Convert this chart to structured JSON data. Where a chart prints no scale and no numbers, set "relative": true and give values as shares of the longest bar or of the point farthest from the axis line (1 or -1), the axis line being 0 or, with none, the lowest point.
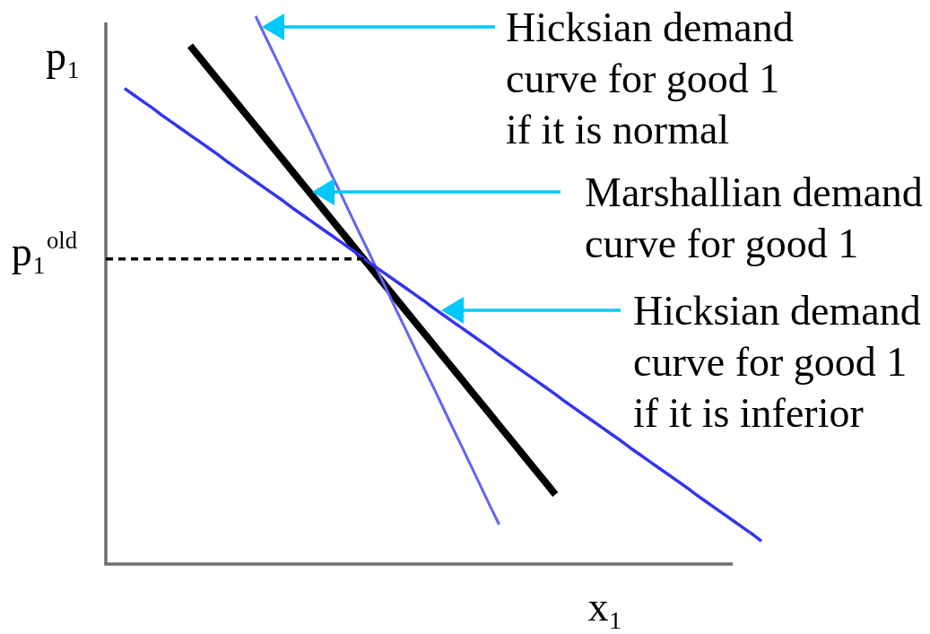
{
  "chart_data": {
    "type": "line",
    "relative": true,
    "xlabel": "x₁",
    "ylabel": "p₁",
    "categories": [
      null,
      null,
      null,
      null,
      null,
      null,
      null,
      null,
      null,
      null,
      null,
      null,
      null,
      null,
      null,
      null,
      null,
      null,
      null,
      null,
      null,
      null,
      null,
      null,
      null,
      null,
      null,
      null,
      null,
      null,
      null,
      null,
      null,
      null,
      null,
      null,
      null,
      null,
      null,
      null,
      null,
      null,
      null,
      null,
      null,
      null,
      null,
      null,
      null,
      null,
      null,
      null,
      null,
      null,
      null,
      null,
      null,
      null,
      null,
      null,
      null,
      null,
      null,
      null,
      null,
      null,
      null,
      null,
      null,
      null,
      null
    ],
    "series": [
      {
        "color": "#000000",
        "values": [
          null,
          null,
          null,
          null,
          null,
          null,
          null,
          null,
          null,
          0.946,
          0.925,
          0.904,
          0.883,
          0.862,
          0.841,
          0.82,
          0.799,
          0.778,
          0.757,
          0.736,
          0.715,
          0.694,
          0.673,
          0.652,
          0.631,
          0.61,
          0.589,
          0.568,
          0.547,
          0.526,
          0.505,
          0.484,
          0.463,
          0.442,
          0.421,
          0.4,
          0.379,
          0.358,
          0.337,
          0.316,
          0.295,
          0.274,
          0.253,
          0.232,
          0.211,
          0.19,
          0.169,
          0.148,
          0.127,
          null,
          null,
          null,
          null,
          null,
          null,
          null,
          null,
          null,
          null,
          null,
          null,
          null,
          null,
          null,
          null,
          null,
          null,
          null,
          null,
          null,
          null
        ]
      },
      {
        "color": "#6464f2",
        "values": [
          null,
          null,
          null,
          null,
          null,
          null,
          null,
          null,
          null,
          null,
          null,
          null,
          null,
          null,
          null,
          null,
          1.0,
          0.964,
          0.929,
          0.893,
          0.857,
          0.821,
          0.786,
          0.75,
          0.714,
          0.679,
          0.643,
          0.607,
          0.572,
          0.536,
          0.5,
          0.464,
          0.429,
          0.393,
          0.357,
          0.322,
          0.286,
          0.25,
          0.215,
          0.179,
          0.143,
          0.107,
          0.072,
          null,
          null,
          null,
          null,
          null,
          null,
          null,
          null,
          null,
          null,
          null,
          null,
          null,
          null,
          null,
          null,
          null,
          null,
          null,
          null,
          null,
          null,
          null,
          null,
          null,
          null,
          null,
          null
        ]
      },
      {
        "color": "#3434ee",
        "values": [
          null,
          null,
          0.868,
          0.856,
          0.844,
          0.832,
          0.819,
          0.807,
          0.795,
          0.783,
          0.771,
          0.759,
          0.747,
          0.734,
          0.722,
          0.71,
          0.698,
          0.686,
          0.674,
          0.662,
          0.649,
          0.637,
          0.625,
          0.613,
          0.601,
          0.589,
          0.577,
          0.565,
          0.552,
          0.54,
          0.528,
          0.516,
          0.504,
          0.492,
          0.48,
          0.467,
          0.455,
          0.443,
          0.431,
          0.419,
          0.407,
          0.395,
          0.382,
          0.37,
          0.358,
          0.346,
          0.334,
          0.322,
          0.31,
          0.297,
          0.285,
          0.273,
          0.261,
          0.249,
          0.237,
          0.225,
          0.212,
          0.2,
          0.188,
          0.176,
          0.164,
          0.152,
          0.14,
          0.127,
          0.115,
          0.103,
          0.091,
          0.079,
          0.067,
          0.055,
          0.042
        ]
      }
    ],
    "ref_lines": [
      {
        "axis": "y",
        "value": 0.557,
        "label": "p₁$^{old}$",
        "color": "#000000",
        "line_style": "dashed"
      }
    ],
    "annotations": [
      "Hicksian demand\ncurve for good 1\nif it is normal",
      "Marshallian demand\ncurve for good 1",
      "Hicksian demand\ncurve for good 1\nif it is inferior"
    ]
  }
}
